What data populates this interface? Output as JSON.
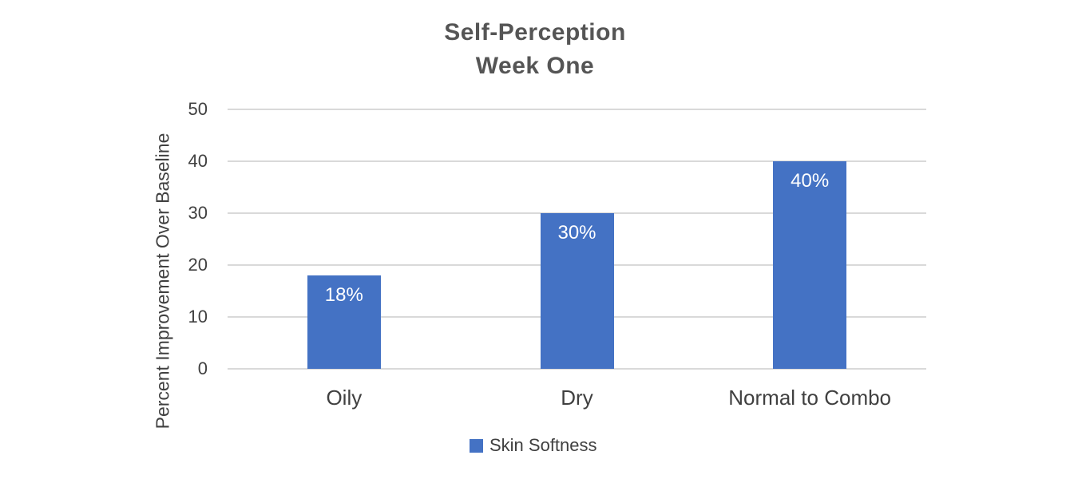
{
  "chart_data": {
    "type": "bar",
    "title": "Self-Perception Week One",
    "title_lines": [
      "Self-Perception",
      "Week One"
    ],
    "categories": [
      "Oily",
      "Dry",
      "Normal to Combo"
    ],
    "series": [
      {
        "name": "Skin Softness",
        "values": [
          18,
          30,
          40
        ],
        "data_labels": [
          "18%",
          "30%",
          "40%"
        ]
      }
    ],
    "xlabel": "",
    "ylabel": "Percent Improvement Over Baseline",
    "ylim": [
      0,
      50
    ],
    "yticks": [
      0,
      10,
      20,
      30,
      40,
      50
    ],
    "grid": true,
    "legend_position": "bottom-center",
    "colors": {
      "bar": "#4472c4",
      "gridline": "#d9d9d9",
      "title_text": "#555555",
      "axis_text": "#404040",
      "data_label_text": "#ffffff",
      "background": "#ffffff"
    }
  }
}
